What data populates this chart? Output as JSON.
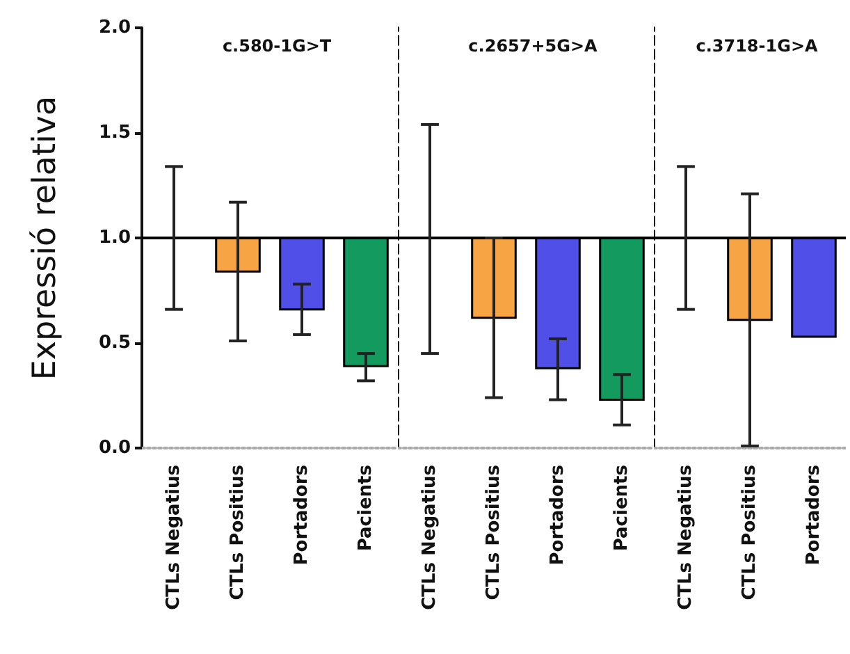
{
  "chart_data": [
    {
      "type": "bar",
      "title": "c.580-1G>T",
      "ylabel": "Expressió relativa",
      "categories": [
        "CTLs Negatius",
        "CTLs Positius",
        "Portadors",
        "Pacients"
      ],
      "base": [
        1,
        1,
        1,
        1
      ],
      "values": [
        0,
        -0.16,
        -0.34,
        -0.61
      ],
      "errors": [
        [
          0.66,
          1.34
        ],
        [
          0.51,
          1.17
        ],
        [
          0.54,
          0.78
        ],
        [
          0.32,
          0.45
        ]
      ],
      "colors": [
        "#000000",
        "#f7a444",
        "#5050e8",
        "#139a5f"
      ],
      "ylim": [
        0,
        2
      ],
      "yticks": [
        {
          "value": 0,
          "label": "0.0"
        },
        {
          "value": 0.5,
          "label": "0.5"
        },
        {
          "value": 1,
          "label": "1.0"
        },
        {
          "value": 1.5,
          "label": "1.5"
        },
        {
          "value": 2,
          "label": "2.0"
        }
      ],
      "ref_lines": [
        {
          "axis": "y",
          "value": 1,
          "color": "#000000",
          "line_style": "solid"
        }
      ],
      "grid": false
    },
    {
      "type": "bar",
      "title": "c.2657+5G>A",
      "categories": [
        "CTLs Negatius",
        "CTLs Positius",
        "Portadors",
        "Pacients"
      ],
      "base": [
        1,
        1,
        1,
        1
      ],
      "values": [
        0,
        -0.38,
        -0.62,
        -0.77
      ],
      "errors": [
        [
          0.45,
          1.54
        ],
        [
          0.24,
          1.0
        ],
        [
          0.23,
          0.52
        ],
        [
          0.11,
          0.35
        ]
      ],
      "colors": [
        "#000000",
        "#f7a444",
        "#5050e8",
        "#139a5f"
      ],
      "ylim": [
        0,
        2
      ],
      "ref_lines": [
        {
          "axis": "y",
          "value": 1,
          "color": "#000000",
          "line_style": "solid"
        }
      ],
      "tick_labels": "x",
      "grid": false
    },
    {
      "type": "bar",
      "title": "c.3718-1G>A",
      "categories": [
        "CTLs Negatius",
        "CTLs Positius",
        "Portadors"
      ],
      "base": [
        1,
        1,
        1
      ],
      "values": [
        0,
        -0.39,
        -0.47
      ],
      "errors": [
        [
          0.66,
          1.34
        ],
        [
          0.01,
          1.21
        ],
        null
      ],
      "colors": [
        "#000000",
        "#f7a444",
        "#5050e8"
      ],
      "ylim": [
        0,
        2
      ],
      "ref_lines": [
        {
          "axis": "y",
          "value": 1,
          "color": "#000000",
          "line_style": "solid"
        }
      ],
      "tick_labels": "x",
      "grid": false
    }
  ]
}
